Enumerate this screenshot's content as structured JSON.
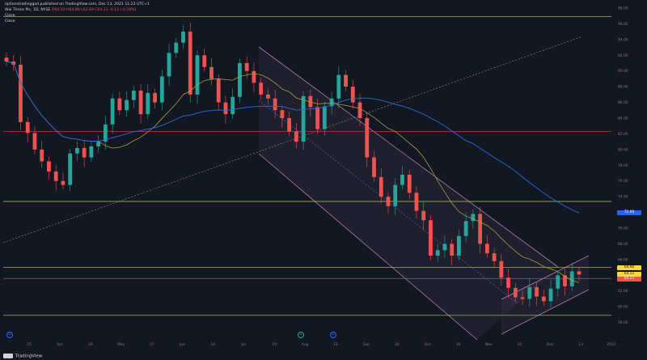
{
  "header": {
    "publisher": "optionstradinggod published on TradingView.com, Dec 13, 2021 11:23 UTC+1",
    "symbol": "Ww Thrice Plc, 1D, NYSE",
    "ohlc": "O64.50 H64.89 L63.69 C64.11 -0.13 (-0.20%)",
    "line2": "Close",
    "line3": "Close"
  },
  "brand": "TradingView",
  "colors": {
    "background": "#131722",
    "up": "#26a69a",
    "down": "#ef5350",
    "ma50": "#a89d3a",
    "ma200": "#1e6fd9",
    "channel": "#b07bb0",
    "hline_green": "#b6c96a",
    "hline_red": "#c0392b",
    "hline_gray": "#787b86",
    "tag_yellow": "#f5d742",
    "tag_red": "#ef5350",
    "tag_blue": "#2962ff"
  },
  "price_tags": [
    {
      "label": "64.96",
      "price": 64.96,
      "color": "#f5d742"
    },
    {
      "label": "64.11",
      "price": 64.11,
      "color": "#f5d742"
    },
    {
      "label": "64.11",
      "price": 64.11,
      "color": "#ef5350"
    },
    {
      "label": "72.00",
      "price": 72.0,
      "color": "#2962ff"
    }
  ],
  "events": [
    {
      "x_label": "Jan 2021",
      "kind": "blue",
      "label": "D"
    },
    {
      "x_label": "Jul 2021",
      "kind": "green",
      "label": "E"
    },
    {
      "x_label": "Aug 2021",
      "kind": "blue",
      "label": "D"
    }
  ],
  "chart_data": {
    "type": "candlestick",
    "title": "",
    "xlabel": "",
    "ylabel": "",
    "ylim": [
      56,
      98
    ],
    "y_ticks": [
      "58.00",
      "60.00",
      "62.00",
      "64.00",
      "66.00",
      "68.00",
      "70.00",
      "72.00",
      "74.00",
      "76.00",
      "78.00",
      "80.00",
      "82.00",
      "84.00",
      "86.00",
      "88.00",
      "90.00",
      "92.00",
      "94.00",
      "96.00",
      "98.00"
    ],
    "x_ticks": [
      "15",
      "Apr",
      "19",
      "May",
      "17",
      "Jun",
      "14",
      "Jul",
      "19",
      "Aug",
      "16",
      "Sep",
      "20",
      "Oct",
      "18",
      "Nov",
      "15",
      "Dec",
      "13",
      "2022"
    ],
    "horizontal_lines": [
      {
        "price": 96.9,
        "color": "#b6c96a"
      },
      {
        "price": 82.3,
        "color": "#c0392b"
      },
      {
        "price": 73.4,
        "color": "#b6c96a"
      },
      {
        "price": 65.0,
        "color": "#b6c96a"
      },
      {
        "price": 63.6,
        "color": "#787b86"
      },
      {
        "price": 58.9,
        "color": "#b6c96a"
      }
    ],
    "series": [
      {
        "name": "",
        "values_close": [
          91.2,
          90.8,
          83.5,
          82.1,
          80.0,
          78.5,
          77.2,
          76.0,
          75.5,
          79.5,
          80.2,
          79.0,
          80.4,
          81.0,
          83.2,
          86.5,
          85.0,
          86.3,
          87.5,
          84.5,
          87.2,
          86.0,
          89.3,
          92.3,
          93.6,
          95.0,
          87.0,
          92.0,
          90.5,
          89.0,
          86.0,
          84.5,
          86.7,
          91.0,
          90.0,
          88.5,
          87.0,
          86.5,
          85.0,
          84.0,
          82.3,
          81.0,
          86.8,
          85.4,
          82.6,
          85.5,
          86.5,
          89.5,
          88.0,
          86.0,
          84.0,
          79.0,
          76.5,
          74.0,
          72.8,
          75.5,
          76.8,
          74.5,
          72.2,
          71.0,
          66.5,
          67.2,
          68.0,
          66.5,
          69.0,
          70.9,
          71.8,
          68.0,
          66.8,
          65.8,
          63.7,
          62.4,
          61.2,
          61.0,
          62.5,
          61.3,
          60.7,
          62.3,
          64.0,
          62.6,
          64.5,
          64.1
        ]
      }
    ],
    "moving_averages": [
      {
        "name": "",
        "period": 50
      },
      {
        "name": "",
        "period": 200
      }
    ]
  }
}
